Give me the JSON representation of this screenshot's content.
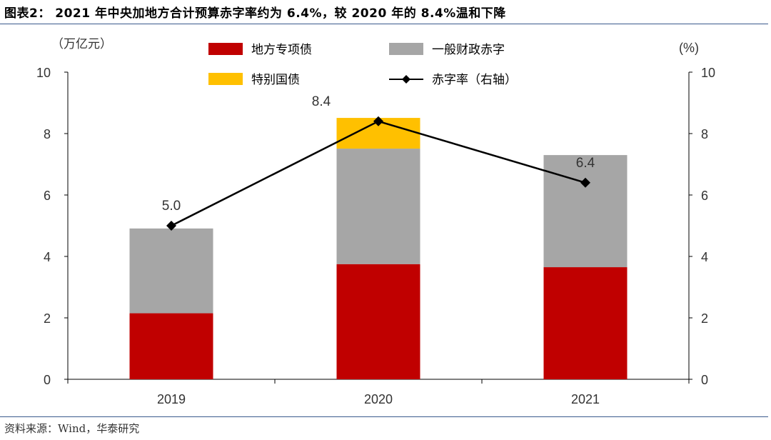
{
  "header": {
    "title": "图表2： 2021 年中央加地方合计预算赤字率约为 6.4%，较 2020 年的 8.4%温和下降"
  },
  "footer": {
    "source": "资料来源：Wind，华泰研究"
  },
  "chart_data": {
    "type": "bar",
    "stacked": true,
    "categories": [
      "2019",
      "2020",
      "2021"
    ],
    "series": [
      {
        "name": "地方专项债",
        "values": [
          2.15,
          3.75,
          3.65
        ],
        "color": "#c00000"
      },
      {
        "name": "一般财政赤字",
        "values": [
          2.76,
          3.76,
          3.65
        ],
        "color": "#a6a6a6"
      },
      {
        "name": "特别国债",
        "values": [
          0,
          1.0,
          0
        ],
        "color": "#ffc000"
      }
    ],
    "line_series": {
      "name": "赤字率（右轴）",
      "values": [
        5.0,
        8.4,
        6.4
      ],
      "labels": [
        "5.0",
        "8.4",
        "6.4"
      ],
      "axis": "right",
      "color": "#000000"
    },
    "y_left": {
      "label": "（万亿元）",
      "range": [
        0,
        10
      ],
      "ticks": [
        "0",
        "2",
        "4",
        "6",
        "8",
        "10"
      ]
    },
    "y_right": {
      "label": "(%)",
      "range": [
        0,
        10
      ],
      "ticks": [
        "0",
        "2",
        "4",
        "6",
        "8",
        "10"
      ]
    },
    "legend": {
      "position": "top",
      "entries": [
        "地方专项债",
        "一般财政赤字",
        "特别国债",
        "赤字率（右轴）"
      ]
    }
  }
}
